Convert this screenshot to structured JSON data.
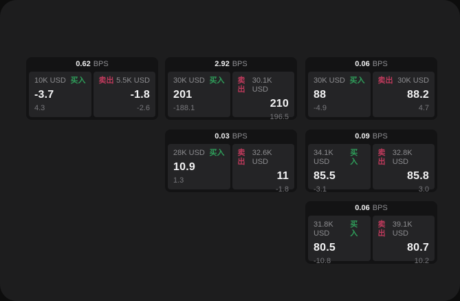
{
  "labels": {
    "bps": "BPS",
    "buy": "买入",
    "sell": "卖出"
  },
  "colors": {
    "buy_green": "#2f9e5a",
    "sell_red": "#bf3a5c",
    "panel_bg": "#242426",
    "card_bg": "#131314",
    "page_bg": "#1d1d1e"
  },
  "cards": [
    {
      "bps": "0.62",
      "buy": {
        "amount": "10K USD",
        "price": "-3.7",
        "delta": "4.3"
      },
      "sell": {
        "amount": "5.5K USD",
        "price": "-1.8",
        "delta": "-2.6"
      }
    },
    {
      "bps": "2.92",
      "buy": {
        "amount": "30K USD",
        "price": "201",
        "delta": "-188.1"
      },
      "sell": {
        "amount": "30.1K USD",
        "price": "210",
        "delta": "196.5"
      }
    },
    {
      "bps": "0.06",
      "buy": {
        "amount": "30K USD",
        "price": "88",
        "delta": "-4.9"
      },
      "sell": {
        "amount": "30K USD",
        "price": "88.2",
        "delta": "4.7"
      }
    },
    {
      "bps": "0.03",
      "buy": {
        "amount": "28K USD",
        "price": "10.9",
        "delta": "1.3"
      },
      "sell": {
        "amount": "32.6K USD",
        "price": "11",
        "delta": "-1.8"
      }
    },
    {
      "bps": "0.09",
      "buy": {
        "amount": "34.1K USD",
        "price": "85.5",
        "delta": "-3.1"
      },
      "sell": {
        "amount": "32.8K USD",
        "price": "85.8",
        "delta": "3.0"
      }
    },
    {
      "bps": "0.06",
      "buy": {
        "amount": "31.8K USD",
        "price": "80.5",
        "delta": "-10.8"
      },
      "sell": {
        "amount": "39.1K USD",
        "price": "80.7",
        "delta": "10.2"
      }
    }
  ]
}
